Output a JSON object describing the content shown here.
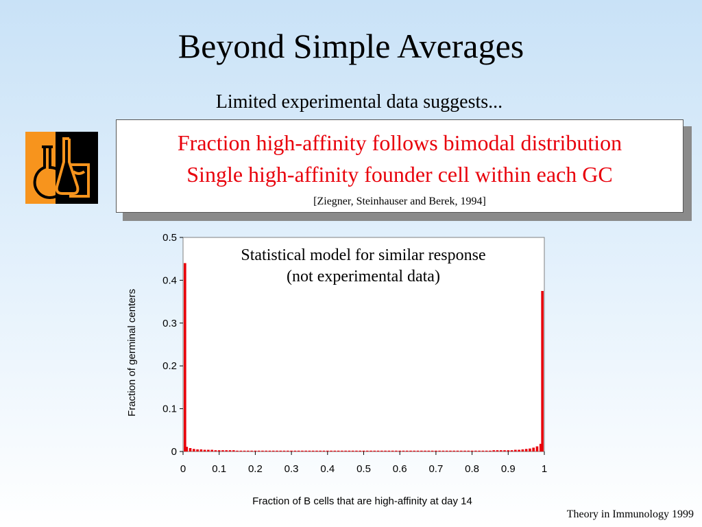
{
  "slide": {
    "title": "Beyond Simple Averages",
    "subtitle": "Limited experimental data suggests...",
    "callout": {
      "line1": "Fraction high-affinity follows bimodal distribution",
      "line2": "Single high-affinity founder cell within each GC",
      "citation": "[Ziegner, Steinhauser and Berek, 1994]"
    },
    "footer": "Theory in Immunology 1999",
    "icon": "lab-glassware-icon",
    "colors": {
      "highlight": "#e8000b",
      "icon_bg": "#f7941d"
    }
  },
  "chart_data": {
    "type": "bar",
    "annotation": [
      "Statistical model for similar response",
      "(not experimental data)"
    ],
    "xlabel": "Fraction of B cells that are high-affinity at day 14",
    "ylabel": "Fraction of germinal centers",
    "xlim": [
      0,
      1
    ],
    "ylim": [
      0,
      0.5
    ],
    "x_ticks": [
      "0",
      "0.1",
      "0.2",
      "0.3",
      "0.4",
      "0.5",
      "0.6",
      "0.7",
      "0.8",
      "0.9",
      "1"
    ],
    "y_ticks": [
      "0.5",
      "0.4",
      "0.3",
      "0.2",
      "0.1",
      "0"
    ],
    "grid": false,
    "bar_color": "#e8000b",
    "x": [
      0,
      0.01,
      0.02,
      0.03,
      0.04,
      0.05,
      0.06,
      0.07,
      0.08,
      0.09,
      0.1,
      0.11,
      0.12,
      0.13,
      0.14,
      0.15,
      0.16,
      0.17,
      0.18,
      0.19,
      0.2,
      0.21,
      0.22,
      0.23,
      0.24,
      0.25,
      0.26,
      0.27,
      0.28,
      0.29,
      0.3,
      0.31,
      0.32,
      0.33,
      0.34,
      0.35,
      0.36,
      0.37,
      0.38,
      0.39,
      0.4,
      0.41,
      0.42,
      0.43,
      0.44,
      0.45,
      0.46,
      0.47,
      0.48,
      0.49,
      0.5,
      0.51,
      0.52,
      0.53,
      0.54,
      0.55,
      0.56,
      0.57,
      0.58,
      0.59,
      0.6,
      0.61,
      0.62,
      0.63,
      0.64,
      0.65,
      0.66,
      0.67,
      0.68,
      0.69,
      0.7,
      0.71,
      0.72,
      0.73,
      0.74,
      0.75,
      0.76,
      0.77,
      0.78,
      0.79,
      0.8,
      0.81,
      0.82,
      0.83,
      0.84,
      0.85,
      0.86,
      0.87,
      0.88,
      0.89,
      0.9,
      0.91,
      0.92,
      0.93,
      0.94,
      0.95,
      0.96,
      0.97,
      0.98,
      0.99,
      1
    ],
    "values": [
      0.44,
      0.011,
      0.008,
      0.006,
      0.005,
      0.005,
      0.004,
      0.004,
      0.004,
      0.003,
      0.003,
      0.003,
      0.003,
      0.003,
      0.003,
      0.002,
      0.002,
      0.002,
      0.002,
      0.002,
      0.002,
      0.002,
      0.002,
      0.002,
      0.002,
      0.002,
      0.002,
      0.002,
      0.002,
      0.002,
      0.002,
      0.002,
      0.002,
      0.002,
      0.002,
      0.002,
      0.002,
      0.002,
      0.002,
      0.002,
      0.002,
      0.002,
      0.002,
      0.002,
      0.002,
      0.002,
      0.002,
      0.002,
      0.002,
      0.002,
      0.002,
      0.002,
      0.002,
      0.002,
      0.002,
      0.002,
      0.002,
      0.002,
      0.002,
      0.002,
      0.002,
      0.002,
      0.002,
      0.002,
      0.002,
      0.002,
      0.002,
      0.002,
      0.002,
      0.002,
      0.002,
      0.002,
      0.002,
      0.002,
      0.002,
      0.002,
      0.002,
      0.002,
      0.002,
      0.002,
      0.002,
      0.002,
      0.002,
      0.002,
      0.002,
      0.002,
      0.003,
      0.003,
      0.003,
      0.003,
      0.003,
      0.003,
      0.004,
      0.004,
      0.005,
      0.006,
      0.007,
      0.009,
      0.012,
      0.018,
      0.375
    ]
  }
}
